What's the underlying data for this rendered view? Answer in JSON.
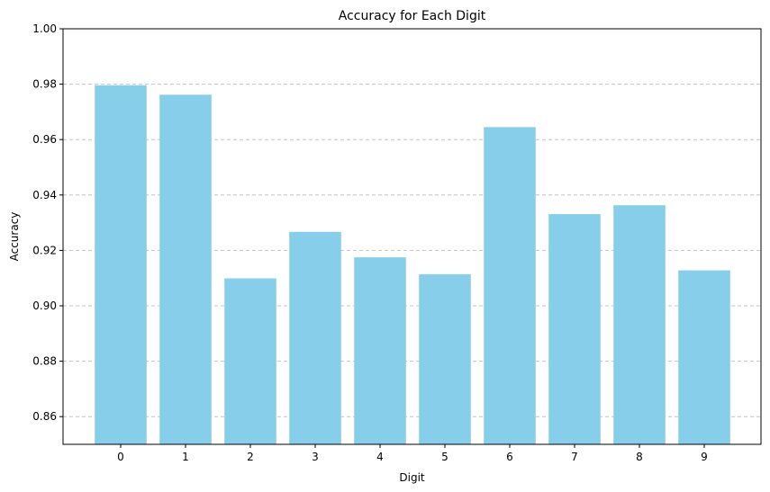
{
  "chart_data": {
    "type": "bar",
    "title": "Accuracy for Each Digit",
    "xlabel": "Digit",
    "ylabel": "Accuracy",
    "categories": [
      "0",
      "1",
      "2",
      "3",
      "4",
      "5",
      "6",
      "7",
      "8",
      "9"
    ],
    "values": [
      0.9796,
      0.9762,
      0.9099,
      0.9267,
      0.9175,
      0.9114,
      0.9645,
      0.9331,
      0.9363,
      0.9128
    ],
    "ylim": [
      0.85,
      1.0
    ],
    "yticks": [
      "0.86",
      "0.88",
      "0.90",
      "0.92",
      "0.94",
      "0.96",
      "0.98",
      "1.00"
    ],
    "grid": "y-axis dashed",
    "bar_color": "#87ceeb",
    "grid_color": "#c4c4c4"
  }
}
